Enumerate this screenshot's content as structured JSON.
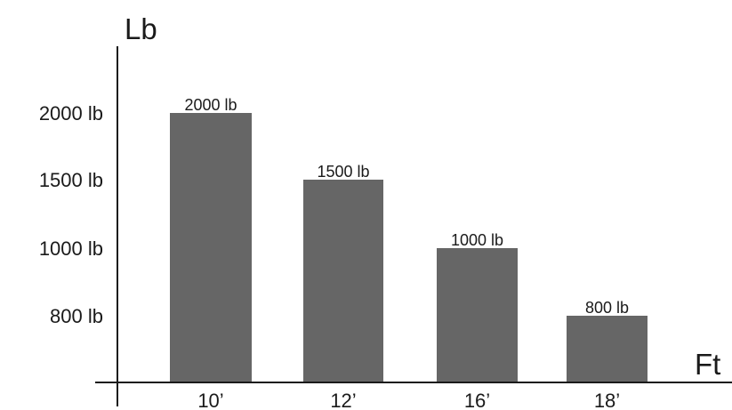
{
  "chart_data": {
    "type": "bar",
    "categories": [
      "10’",
      "12’",
      "16’",
      "18’"
    ],
    "values": [
      2000,
      1500,
      1000,
      800
    ],
    "data_labels": [
      "2000 lb",
      "1500 lb",
      "1000 lb",
      "800 lb"
    ],
    "ytick_values": [
      800,
      1000,
      1500,
      2000
    ],
    "ytick_labels": [
      "800 lb",
      "1000 lb",
      "1500 lb",
      "2000 lb"
    ],
    "ylabel": "Lb",
    "xlabel": "Ft",
    "grid": false,
    "legend": "none",
    "colors": {
      "bar": "#666666",
      "axis": "#1a1a1a",
      "text": "#1a1a1a"
    }
  }
}
